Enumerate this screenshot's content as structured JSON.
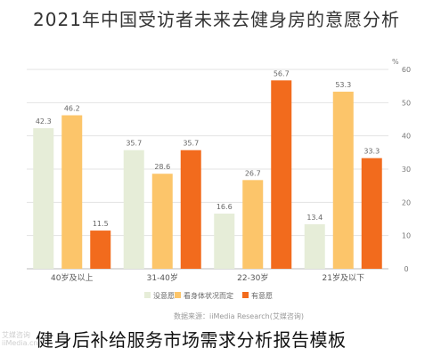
{
  "chart_data": {
    "type": "bar",
    "title": "2021年中国受访者未来去健身房的意愿分析",
    "ylabel": "%",
    "ylim": [
      0,
      60
    ],
    "yticks": [
      0,
      10,
      20,
      30,
      40,
      50,
      60
    ],
    "y_axis_side": "right",
    "grid": true,
    "legend_position": "bottom",
    "categories": [
      "40岁及以上",
      "31-40岁",
      "22-30岁",
      "21岁及以下"
    ],
    "series": [
      {
        "name": "没意愿",
        "color": "#e6edd8",
        "values": [
          42.3,
          35.7,
          16.6,
          13.4
        ]
      },
      {
        "name": "看身体状况而定",
        "color": "#fcc56a",
        "values": [
          46.2,
          28.6,
          26.7,
          53.3
        ]
      },
      {
        "name": "有意愿",
        "color": "#f26b1d",
        "values": [
          11.5,
          35.7,
          56.7,
          33.3
        ]
      }
    ]
  },
  "footer": {
    "source": "数据来源：iiMedia Research(艾媒咨询)",
    "caption": "健身后补给服务市场需求分析报告模板",
    "watermark_line1": "艾媒咨询",
    "watermark_line2": "iiMedia.cn"
  }
}
